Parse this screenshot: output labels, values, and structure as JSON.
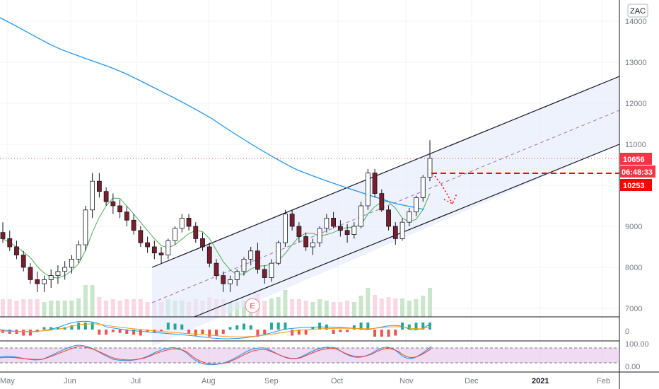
{
  "symbol_badge": "ZAC",
  "price_axis": {
    "ticks": [
      "14000",
      "13000",
      "12000",
      "11000",
      "9000",
      "8000",
      "7000"
    ],
    "last_price_tag": "10656",
    "countdown_tag": "06:48:33",
    "target_tag": "10253",
    "colors": {
      "last": "#f23645",
      "countdown": "#f23645",
      "target": "#ff0000"
    }
  },
  "macd_axis": {
    "zero_label": "0"
  },
  "stoch_axis": {
    "upper_label": "100.00",
    "lower_label": "0.00"
  },
  "time_axis": {
    "labels": [
      "May",
      "Jun",
      "Jul",
      "Aug",
      "Sep",
      "Oct",
      "Nov",
      "Dec",
      "2021",
      "Feb"
    ],
    "bold_labels": [
      "2021"
    ]
  },
  "earnings_marker": "E",
  "chart_data": {
    "type": "candlestick",
    "instrument": "ZAC",
    "x_range": [
      "May 2020",
      "Feb 2021"
    ],
    "ylim": [
      6800,
      14500
    ],
    "last_price": 10656,
    "target_price": 10253,
    "candles_ohlc": [
      [
        8850,
        9100,
        8600,
        8700
      ],
      [
        8700,
        8900,
        8400,
        8500
      ],
      [
        8500,
        8650,
        8200,
        8300
      ],
      [
        8300,
        8400,
        7900,
        8000
      ],
      [
        8000,
        8100,
        7600,
        7700
      ],
      [
        7700,
        7900,
        7400,
        7600
      ],
      [
        7600,
        7800,
        7400,
        7700
      ],
      [
        7700,
        7950,
        7500,
        7800
      ],
      [
        7800,
        8050,
        7600,
        7900
      ],
      [
        7900,
        8150,
        7700,
        8000
      ],
      [
        8000,
        8300,
        7850,
        8200
      ],
      [
        8200,
        8650,
        8100,
        8550
      ],
      [
        8550,
        9500,
        8400,
        9400
      ],
      [
        9400,
        10300,
        9200,
        10100
      ],
      [
        10100,
        10300,
        9700,
        9850
      ],
      [
        9850,
        9950,
        9500,
        9600
      ],
      [
        9600,
        9800,
        9300,
        9500
      ],
      [
        9500,
        9650,
        9200,
        9350
      ],
      [
        9350,
        9500,
        9000,
        9150
      ],
      [
        9150,
        9300,
        8800,
        8900
      ],
      [
        8900,
        9000,
        8500,
        8600
      ],
      [
        8600,
        8750,
        8350,
        8500
      ],
      [
        8500,
        8650,
        8200,
        8350
      ],
      [
        8350,
        8500,
        8100,
        8300
      ],
      [
        8300,
        8700,
        8200,
        8650
      ],
      [
        8650,
        9000,
        8550,
        8950
      ],
      [
        8950,
        9300,
        8850,
        9200
      ],
      [
        9200,
        9300,
        8900,
        9000
      ],
      [
        9000,
        9100,
        8600,
        8700
      ],
      [
        8700,
        8850,
        8400,
        8500
      ],
      [
        8500,
        8600,
        8000,
        8100
      ],
      [
        8100,
        8200,
        7700,
        7800
      ],
      [
        7800,
        7900,
        7400,
        7600
      ],
      [
        7600,
        7800,
        7400,
        7700
      ],
      [
        7700,
        7950,
        7550,
        7900
      ],
      [
        7900,
        8250,
        7800,
        8200
      ],
      [
        8200,
        8500,
        8050,
        8400
      ],
      [
        8400,
        8600,
        7850,
        7950
      ],
      [
        7950,
        8050,
        7600,
        7750
      ],
      [
        7750,
        8200,
        7650,
        8100
      ],
      [
        8100,
        8650,
        8050,
        8600
      ],
      [
        8600,
        9400,
        8500,
        9300
      ],
      [
        9300,
        9400,
        8900,
        9000
      ],
      [
        9000,
        9100,
        8600,
        8750
      ],
      [
        8750,
        8850,
        8400,
        8500
      ],
      [
        8500,
        8700,
        8300,
        8600
      ],
      [
        8600,
        9000,
        8500,
        8950
      ],
      [
        8950,
        9300,
        8850,
        9200
      ],
      [
        9200,
        9350,
        8950,
        9000
      ],
      [
        9000,
        9150,
        8750,
        8900
      ],
      [
        8900,
        9050,
        8600,
        8800
      ],
      [
        8800,
        9100,
        8700,
        9000
      ],
      [
        9000,
        9600,
        8950,
        9500
      ],
      [
        9500,
        10400,
        9400,
        10300
      ],
      [
        10300,
        10400,
        9700,
        9800
      ],
      [
        9800,
        9900,
        9350,
        9400
      ],
      [
        9400,
        9500,
        8900,
        9000
      ],
      [
        9000,
        9100,
        8550,
        8700
      ],
      [
        8700,
        9200,
        8650,
        9100
      ],
      [
        9100,
        9450,
        9000,
        9350
      ],
      [
        9350,
        9750,
        9250,
        9700
      ],
      [
        9700,
        10250,
        9600,
        10200
      ],
      [
        10200,
        11100,
        10100,
        10656
      ]
    ]
  }
}
